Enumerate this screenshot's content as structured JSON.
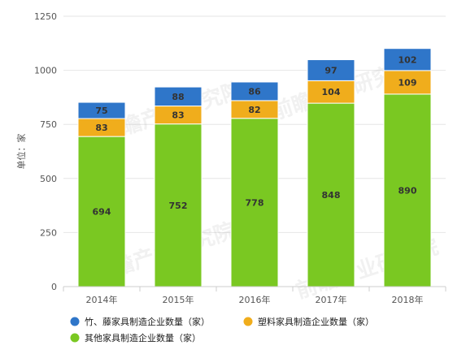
{
  "chart_data": {
    "type": "bar",
    "stacked": true,
    "categories": [
      "2014年",
      "2015年",
      "2016年",
      "2017年",
      "2018年"
    ],
    "series": [
      {
        "name": "其他家具制造企业数量（家）",
        "values": [
          694,
          752,
          778,
          848,
          890
        ],
        "color": "#7ac822"
      },
      {
        "name": "塑料家具制造企业数量（家）",
        "values": [
          83,
          83,
          82,
          104,
          109
        ],
        "color": "#f0ad1c"
      },
      {
        "name": "竹、藤家具制造企业数量（家）",
        "values": [
          75,
          88,
          86,
          97,
          102
        ],
        "color": "#2f76c9"
      }
    ],
    "ylabel": "单位：家",
    "ylim": [
      0,
      1250
    ],
    "yticks": [
      0,
      250,
      500,
      750,
      1000,
      1250
    ],
    "grid": true,
    "legend_position": "bottom",
    "legend_order": [
      2,
      1,
      0
    ]
  }
}
